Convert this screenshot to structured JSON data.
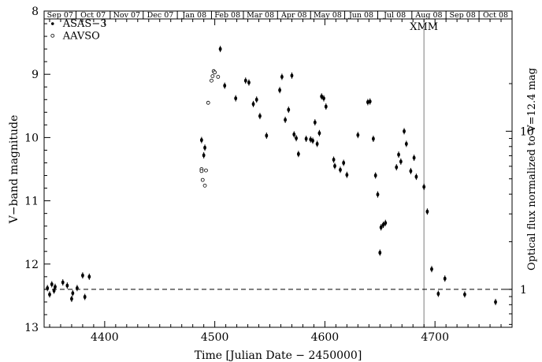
{
  "chart_data": {
    "type": "scatter",
    "xlabel": "Time [Julian Date − 2450000]",
    "ylabel": "V−band magnitude",
    "y2label": "Optical flux normalized to V=12.4 mag",
    "xlim": [
      4345,
      4770
    ],
    "ylim": [
      13,
      8
    ],
    "y_inverted": true,
    "x_ticks": [
      4400,
      4500,
      4600,
      4700
    ],
    "y_ticks": [
      8,
      9,
      10,
      11,
      12,
      13
    ],
    "y2_ticks": [
      {
        "label": "10",
        "magnitude": 9.9
      },
      {
        "label": "1",
        "magnitude": 12.4
      }
    ],
    "month_labels": [
      {
        "label": "Sep 07",
        "jd": 4344
      },
      {
        "label": "Oct 07",
        "jd": 4374
      },
      {
        "label": "Nov 07",
        "jd": 4405
      },
      {
        "label": "Dec 07",
        "jd": 4435
      },
      {
        "label": "Jan 08",
        "jd": 4466
      },
      {
        "label": "Feb 08",
        "jd": 4497
      },
      {
        "label": "Mar 08",
        "jd": 4526
      },
      {
        "label": "Apr 08",
        "jd": 4557
      },
      {
        "label": "May 08",
        "jd": 4587
      },
      {
        "label": "Jun 08",
        "jd": 4618
      },
      {
        "label": "Jul 08",
        "jd": 4648
      },
      {
        "label": "Aug 08",
        "jd": 4679
      },
      {
        "label": "Sep 08",
        "jd": 4710
      },
      {
        "label": "Oct 08",
        "jd": 4740
      }
    ],
    "reference_line": {
      "magnitude": 12.4,
      "style": "dashed"
    },
    "annotation_line": {
      "jd": 4690,
      "label": "XMM"
    },
    "legend_position": "top-left",
    "series": [
      {
        "name": "ASAS−3",
        "marker": "filled",
        "points": [
          [
            4348,
            12.38
          ],
          [
            4350,
            12.48
          ],
          [
            4352,
            12.32
          ],
          [
            4354,
            12.42
          ],
          [
            4355,
            12.36
          ],
          [
            4362,
            12.29
          ],
          [
            4366,
            12.34
          ],
          [
            4370,
            12.55
          ],
          [
            4371,
            12.46
          ],
          [
            4375,
            12.38
          ],
          [
            4380,
            12.18
          ],
          [
            4382,
            12.52
          ],
          [
            4386,
            12.2
          ],
          [
            4488,
            10.04
          ],
          [
            4490,
            10.28
          ],
          [
            4491,
            10.16
          ],
          [
            4505,
            8.6
          ],
          [
            4509,
            9.18
          ],
          [
            4519,
            9.38
          ],
          [
            4528,
            9.1
          ],
          [
            4531,
            9.13
          ],
          [
            4535,
            9.47
          ],
          [
            4538,
            9.4
          ],
          [
            4541,
            9.66
          ],
          [
            4547,
            9.97
          ],
          [
            4559,
            9.25
          ],
          [
            4561,
            9.04
          ],
          [
            4564,
            9.72
          ],
          [
            4567,
            9.56
          ],
          [
            4570,
            9.02
          ],
          [
            4572,
            9.95
          ],
          [
            4574,
            10.01
          ],
          [
            4576,
            10.26
          ],
          [
            4583,
            10.02
          ],
          [
            4587,
            10.03
          ],
          [
            4589,
            10.05
          ],
          [
            4591,
            9.76
          ],
          [
            4593,
            10.1
          ],
          [
            4595,
            9.93
          ],
          [
            4597,
            9.35
          ],
          [
            4599,
            9.38
          ],
          [
            4601,
            9.51
          ],
          [
            4608,
            10.35
          ],
          [
            4609,
            10.45
          ],
          [
            4614,
            10.51
          ],
          [
            4617,
            10.4
          ],
          [
            4620,
            10.59
          ],
          [
            4630,
            9.96
          ],
          [
            4639,
            9.44
          ],
          [
            4641,
            9.43
          ],
          [
            4644,
            10.02
          ],
          [
            4646,
            10.6
          ],
          [
            4648,
            10.9
          ],
          [
            4650,
            11.82
          ],
          [
            4651,
            11.42
          ],
          [
            4653,
            11.38
          ],
          [
            4655,
            11.35
          ],
          [
            4665,
            10.47
          ],
          [
            4667,
            10.27
          ],
          [
            4669,
            10.38
          ],
          [
            4672,
            9.9
          ],
          [
            4674,
            10.1
          ],
          [
            4678,
            10.53
          ],
          [
            4681,
            10.32
          ],
          [
            4683,
            10.62
          ],
          [
            4690,
            10.78
          ],
          [
            4693,
            11.17
          ],
          [
            4697,
            12.08
          ],
          [
            4703,
            12.47
          ],
          [
            4709,
            12.23
          ],
          [
            4727,
            12.48
          ],
          [
            4755,
            12.6
          ]
        ]
      },
      {
        "name": "AAVSO",
        "marker": "open",
        "points": [
          [
            4488,
            10.5
          ],
          [
            4488,
            10.53
          ],
          [
            4489,
            10.67
          ],
          [
            4491,
            10.76
          ],
          [
            4492,
            10.52
          ],
          [
            4494,
            9.45
          ],
          [
            4497,
            9.1
          ],
          [
            4498,
            9.03
          ],
          [
            4499,
            8.95
          ],
          [
            4500,
            8.97
          ],
          [
            4503,
            9.04
          ]
        ]
      }
    ]
  }
}
